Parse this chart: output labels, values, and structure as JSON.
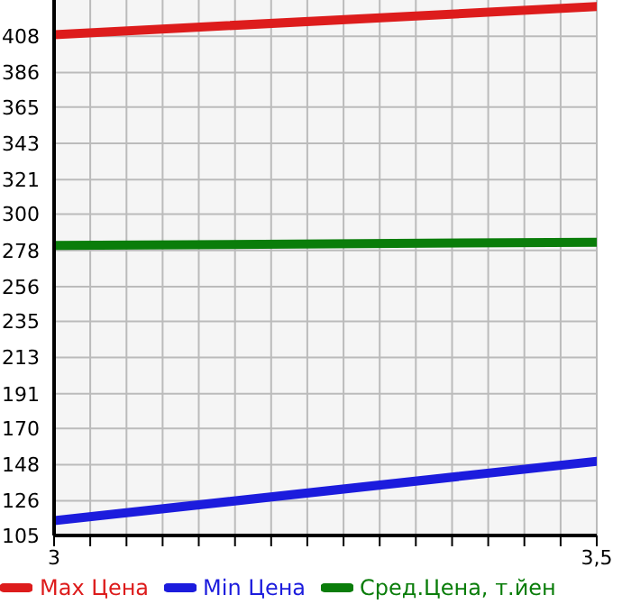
{
  "chart_data": {
    "type": "line",
    "x": [
      3,
      3.5
    ],
    "series": [
      {
        "name": "Max Цена",
        "color": "#dd1c1c",
        "values": [
          409,
          426
        ]
      },
      {
        "name": "Min Цена",
        "color": "#1c1cdd",
        "values": [
          114,
          150
        ]
      },
      {
        "name": "Сред.Цена, т.йен",
        "color": "#0a7d0a",
        "values": [
          281,
          283
        ]
      }
    ],
    "xlim": [
      3,
      3.5
    ],
    "xticks": [
      3,
      {
        "value": 3.0333,
        "label": null
      },
      {
        "value": 3.0667,
        "label": null
      },
      {
        "value": 3.1,
        "label": null
      },
      {
        "value": 3.1333,
        "label": null
      },
      {
        "value": 3.1667,
        "label": null
      },
      {
        "value": 3.2,
        "label": null
      },
      {
        "value": 3.2333,
        "label": null
      },
      {
        "value": 3.2667,
        "label": null
      },
      {
        "value": 3.3,
        "label": null
      },
      {
        "value": 3.3333,
        "label": null
      },
      {
        "value": 3.3667,
        "label": null
      },
      {
        "value": 3.4,
        "label": null
      },
      {
        "value": 3.4333,
        "label": null
      },
      {
        "value": 3.4667,
        "label": null
      },
      {
        "value": 3.5,
        "label": "3,5"
      }
    ],
    "ylim": [
      105,
      430
    ],
    "yticks": [
      105,
      126,
      148,
      170,
      191,
      213,
      235,
      256,
      278,
      300,
      321,
      343,
      365,
      386,
      408
    ],
    "grid": true,
    "legend": "bottom",
    "marker": "none",
    "line_style": "solid"
  }
}
